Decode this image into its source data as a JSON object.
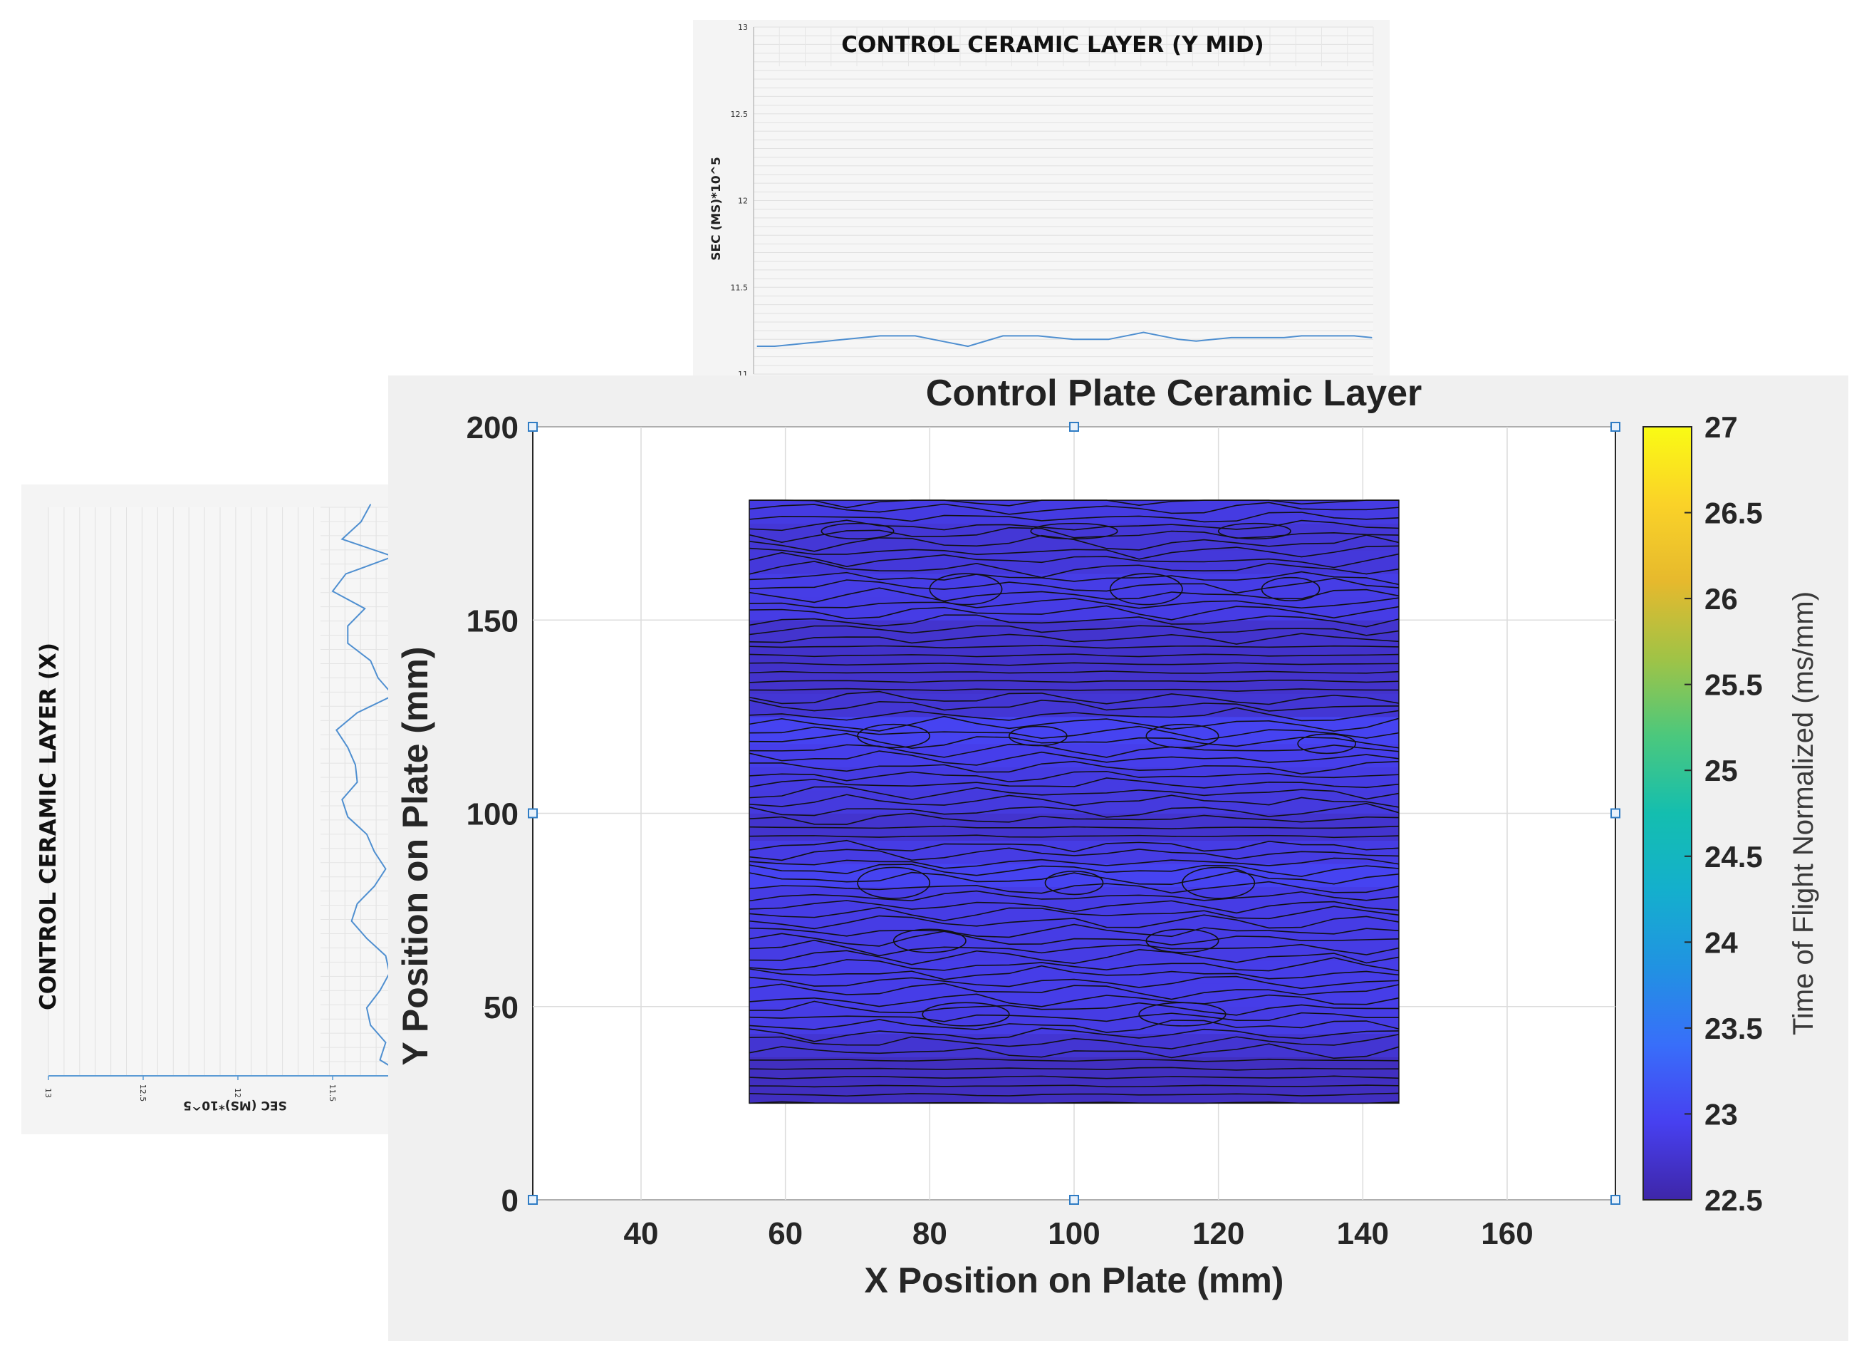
{
  "chart_data": [
    {
      "id": "top",
      "type": "line",
      "title": "CONTROL CERAMIC LAYER (Y MID)",
      "ylabel": "SEC (MS)*10^5",
      "ylim": [
        11,
        13
      ],
      "yticks": [
        "11",
        "11.5",
        "12",
        "12.5",
        "13"
      ],
      "x": [
        0,
        1,
        2,
        3,
        4,
        5,
        6,
        7,
        8,
        9,
        10,
        11,
        12,
        13,
        14,
        15,
        16,
        17,
        18,
        19,
        20,
        21,
        22,
        23,
        24,
        25,
        26,
        27,
        28,
        29,
        30,
        31,
        32,
        33,
        34,
        35
      ],
      "values": [
        11.16,
        11.16,
        11.17,
        11.18,
        11.19,
        11.2,
        11.21,
        11.22,
        11.22,
        11.22,
        11.2,
        11.18,
        11.16,
        11.19,
        11.22,
        11.22,
        11.22,
        11.21,
        11.2,
        11.2,
        11.2,
        11.22,
        11.24,
        11.22,
        11.2,
        11.19,
        11.2,
        11.21,
        11.21,
        11.21,
        11.21,
        11.22,
        11.22,
        11.22,
        11.22,
        11.21
      ],
      "grid": true
    },
    {
      "id": "left",
      "type": "line",
      "title": "CONTROL CERAMIC LAYER (X)",
      "xlabel": "SEC (MS)*10^5",
      "ylim": [
        13,
        11
      ],
      "yticks": [
        "13",
        "12.5",
        "12",
        "11.5"
      ],
      "x": [
        0,
        1,
        2,
        3,
        4,
        5,
        6,
        7,
        8,
        9,
        10,
        11,
        12,
        13,
        14,
        15,
        16,
        17,
        18,
        19,
        20,
        21,
        22,
        23,
        24,
        25,
        26,
        27,
        28,
        29,
        30,
        31,
        32,
        33
      ],
      "values": [
        11.3,
        11.35,
        11.45,
        11.18,
        11.43,
        11.5,
        11.33,
        11.42,
        11.42,
        11.3,
        11.26,
        11.18,
        11.37,
        11.48,
        11.42,
        11.38,
        11.37,
        11.45,
        11.42,
        11.32,
        11.28,
        11.22,
        11.28,
        11.37,
        11.4,
        11.32,
        11.22,
        11.2,
        11.25,
        11.32,
        11.3,
        11.22,
        11.25,
        11.1
      ],
      "grid": true
    },
    {
      "id": "main",
      "type": "heatmap",
      "title": "Control Plate Ceramic Layer",
      "xlabel": "X Position on Plate (mm)",
      "ylabel": "Y Position on Plate (mm)",
      "xlim": [
        25,
        175
      ],
      "ylim": [
        0,
        200
      ],
      "xticks": [
        "40",
        "60",
        "80",
        "100",
        "120",
        "140",
        "160"
      ],
      "yticks": [
        "0",
        "50",
        "100",
        "150",
        "200"
      ],
      "data_extent": {
        "x": [
          55,
          145
        ],
        "y": [
          25,
          181
        ]
      },
      "grid": true,
      "colorbar": {
        "label": "Time of Flight Normalized (ms/mm)",
        "ticks": [
          "22.5",
          "23",
          "23.5",
          "24",
          "24.5",
          "25",
          "25.5",
          "26",
          "26.5",
          "27"
        ],
        "range": [
          22.5,
          27
        ]
      },
      "band_values": [
        {
          "y": 25,
          "v": 22.62
        },
        {
          "y": 31,
          "v": 22.68
        },
        {
          "y": 37,
          "v": 22.62
        },
        {
          "y": 43,
          "v": 22.9
        },
        {
          "y": 50,
          "v": 22.85
        },
        {
          "y": 56,
          "v": 22.95
        },
        {
          "y": 62,
          "v": 22.85
        },
        {
          "y": 68,
          "v": 22.9
        },
        {
          "y": 75,
          "v": 22.86
        },
        {
          "y": 81,
          "v": 22.9
        },
        {
          "y": 87,
          "v": 23.05
        },
        {
          "y": 93,
          "v": 22.7
        },
        {
          "y": 100,
          "v": 22.78
        },
        {
          "y": 106,
          "v": 22.9
        },
        {
          "y": 112,
          "v": 22.82
        },
        {
          "y": 118,
          "v": 23.0
        },
        {
          "y": 125,
          "v": 22.95
        },
        {
          "y": 131,
          "v": 22.6
        },
        {
          "y": 137,
          "v": 22.85
        },
        {
          "y": 143,
          "v": 22.58
        },
        {
          "y": 150,
          "v": 22.9
        },
        {
          "y": 156,
          "v": 22.86
        },
        {
          "y": 162,
          "v": 22.92
        },
        {
          "y": 168,
          "v": 22.7
        },
        {
          "y": 175,
          "v": 22.88
        },
        {
          "y": 181,
          "v": 22.84
        }
      ]
    }
  ]
}
